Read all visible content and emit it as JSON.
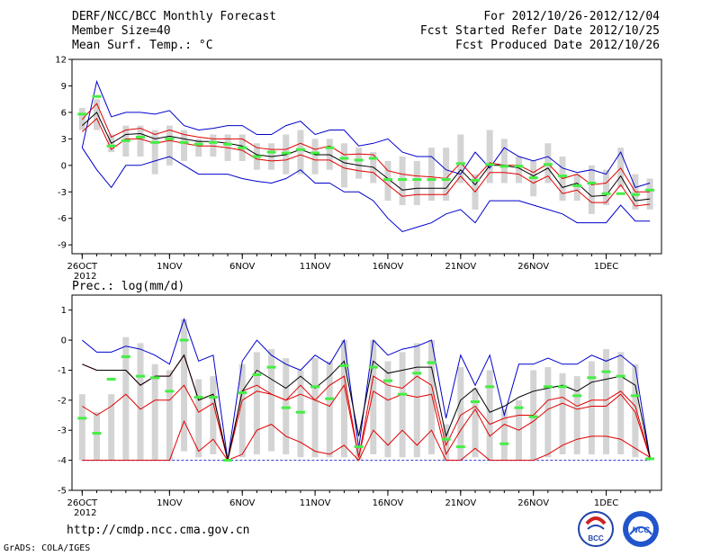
{
  "header": {
    "left": [
      "DERF/NCC/BCC Monthly Forecast",
      "Member Size=40",
      "Mean Surf. Temp.: °C"
    ],
    "right": [
      "For 2012/10/26-2012/12/04",
      "Fcst Started Refer Date 2012/10/25",
      "Fcst Produced Date 2012/10/26"
    ]
  },
  "precip_label": "Prec.: log(mm/d)",
  "footer": {
    "url": "http://cmdp.ncc.cma.gov.cn",
    "credit": "GrADS: COLA/IGES"
  },
  "logos": [
    {
      "name": "bcc-logo",
      "text": "BCC"
    },
    {
      "name": "ncc-logo",
      "text": "NCC"
    }
  ],
  "chart_data": [
    {
      "type": "line",
      "title": "Mean Surf. Temp.: °C",
      "x_labels": [
        {
          "day": 1,
          "label": "26OCT"
        },
        {
          "day": 7,
          "label": "1NOV"
        },
        {
          "day": 12,
          "label": "6NOV"
        },
        {
          "day": 17,
          "label": "11NOV"
        },
        {
          "day": 22,
          "label": "16NOV"
        },
        {
          "day": 27,
          "label": "21NOV"
        },
        {
          "day": 32,
          "label": "26NOV"
        },
        {
          "day": 37,
          "label": "1DEC"
        }
      ],
      "year_label": "2012",
      "ylim": [
        -10,
        12
      ],
      "yticks": [
        -9,
        -6,
        -3,
        0,
        3,
        6,
        9,
        12
      ],
      "series": [
        {
          "name": "max",
          "color": "#0000cc",
          "values": [
            2,
            9.5,
            5.5,
            6,
            6,
            5.8,
            6.2,
            4.5,
            4,
            4.2,
            4.5,
            4.5,
            3.5,
            3.5,
            4.5,
            5,
            3.5,
            4,
            4,
            2.2,
            2.5,
            3,
            1.5,
            1,
            1,
            -0.5,
            -1,
            1.5,
            -0.3,
            2,
            1,
            0.5,
            1,
            -0.3,
            -0.8,
            -0.5,
            -1,
            1.5,
            -2.5,
            -2
          ]
        },
        {
          "name": "mean-upper",
          "color": "#e00000",
          "values": [
            5.2,
            7,
            3.2,
            4,
            4.2,
            3.5,
            4,
            3.5,
            3.2,
            3,
            3,
            3,
            2,
            1.8,
            1.8,
            2.5,
            1.8,
            2.2,
            1.2,
            1.3,
            1.2,
            -0.6,
            -1,
            -1.2,
            -1.3,
            -1.5,
            0.3,
            -1.5,
            0.3,
            0,
            0,
            -0.8,
            0.2,
            -1.5,
            -1,
            -2.2,
            -2,
            -0.3,
            -3,
            -3
          ]
        },
        {
          "name": "ensemble-mean",
          "color": "#000000",
          "values": [
            4.5,
            6,
            2.5,
            3.5,
            3.6,
            3,
            3.3,
            3,
            2.7,
            2.7,
            2.5,
            2.2,
            1.2,
            1,
            1.2,
            1.8,
            1.2,
            1.2,
            0.3,
            0,
            -0.2,
            -1.5,
            -2.8,
            -2.6,
            -2.6,
            -2.6,
            -0.5,
            -2.2,
            0,
            0,
            -0.3,
            -1.2,
            -0.3,
            -2.5,
            -2,
            -3.5,
            -3.4,
            -1.2,
            -4,
            -3.8
          ]
        },
        {
          "name": "mean-lower",
          "color": "#e00000",
          "values": [
            3.8,
            5.3,
            1.8,
            3,
            3,
            2.5,
            2.8,
            2.5,
            2.2,
            2.2,
            2,
            1.7,
            0.7,
            0.5,
            0.6,
            1.2,
            0.6,
            0.6,
            -0.3,
            -0.6,
            -0.8,
            -2.2,
            -3.5,
            -3.3,
            -3.3,
            -3.3,
            -1.2,
            -3,
            -0.8,
            -0.8,
            -1,
            -2,
            -1.2,
            -3.2,
            -2.8,
            -4.2,
            -4.2,
            -2.2,
            -4.6,
            -4.4
          ]
        },
        {
          "name": "min",
          "color": "#0000cc",
          "values": [
            2,
            -0.5,
            -2.5,
            0,
            0,
            0.5,
            1,
            0,
            -1,
            -1,
            -1,
            -1.5,
            -1.8,
            -2,
            -1.5,
            -0.5,
            -2,
            -2,
            -3,
            -3,
            -4,
            -6,
            -7.5,
            -7,
            -6.5,
            -5.5,
            -5,
            -6.5,
            -4,
            -4,
            -4,
            -4.5,
            -5,
            -5.5,
            -6.5,
            -6.5,
            -6.5,
            -4.5,
            -6.3,
            -6.3
          ]
        },
        {
          "name": "box-top",
          "color": "#d4d4d4",
          "values": [
            6.5,
            7.5,
            3.5,
            4.5,
            4.5,
            4,
            4.5,
            4,
            3,
            3.5,
            3.5,
            3.5,
            2.5,
            2.5,
            3.5,
            4,
            3,
            3,
            2.5,
            2,
            1.5,
            0.5,
            1,
            0.5,
            2,
            2,
            3.5,
            -1,
            4,
            3,
            1,
            0.5,
            2.5,
            1,
            -1,
            0,
            -0.5,
            2,
            -1,
            -1.5
          ]
        },
        {
          "name": "box-bottom",
          "color": "#d4d4d4",
          "values": [
            4,
            4,
            1.5,
            1,
            1,
            -1,
            0,
            0.5,
            1,
            1,
            0.5,
            0.5,
            -0.5,
            -0.5,
            -1,
            -1,
            -1,
            -0.5,
            -2.5,
            -1.5,
            -2,
            -4,
            -4.5,
            -4.5,
            -4,
            -4,
            -2,
            -5,
            -2,
            -2,
            -2,
            -3.5,
            -2,
            -4,
            -4,
            -5.5,
            -4.5,
            -2.5,
            -5,
            -5
          ]
        },
        {
          "name": "observed",
          "color": "#44ee44",
          "values": [
            5.8,
            7.8,
            2.2,
            2.8,
            3.2,
            2.6,
            3,
            2.6,
            2.4,
            2.6,
            2.4,
            2,
            1,
            1.5,
            1.4,
            1.8,
            1.4,
            2,
            0.8,
            0.6,
            0.8,
            -1.6,
            -1.6,
            -1.6,
            -1.6,
            -1.6,
            0.2,
            -1.7,
            0.1,
            -0.1,
            -0.1,
            -1.4,
            0.1,
            -1.2,
            -2.3,
            -2,
            -3.2,
            -3.2,
            -3.3,
            -2.8
          ]
        }
      ]
    },
    {
      "type": "line",
      "title": "Prec.: log(mm/d)",
      "x_labels": [
        {
          "day": 1,
          "label": "26OCT"
        },
        {
          "day": 7,
          "label": "1NOV"
        },
        {
          "day": 12,
          "label": "6NOV"
        },
        {
          "day": 17,
          "label": "11NOV"
        },
        {
          "day": 22,
          "label": "16NOV"
        },
        {
          "day": 27,
          "label": "21NOV"
        },
        {
          "day": 32,
          "label": "26NOV"
        },
        {
          "day": 37,
          "label": "1DEC"
        }
      ],
      "year_label": "2012",
      "ylim": [
        -5,
        1.5
      ],
      "yticks": [
        -5,
        -4,
        -3,
        -2,
        -1,
        0,
        1
      ],
      "series": [
        {
          "name": "max",
          "color": "#0000cc",
          "values": [
            0,
            -0.4,
            -0.4,
            -0.2,
            -0.3,
            -0.5,
            -0.8,
            0.7,
            -0.7,
            -0.5,
            -4,
            -0.7,
            0,
            -0.5,
            -0.8,
            -1,
            -0.5,
            -0.8,
            0,
            -3.6,
            0,
            -0.5,
            -0.3,
            -0.2,
            0,
            -2.6,
            -0.5,
            -1.5,
            -0.5,
            -2.5,
            -0.8,
            -0.8,
            -0.6,
            -0.8,
            -0.8,
            -0.5,
            -0.7,
            -0.5,
            -0.9,
            -3.9
          ]
        },
        {
          "name": "mean-upper",
          "color": "#e00000",
          "values": [
            -0.8,
            -1,
            -1,
            -1,
            -1.5,
            -1.2,
            -1.2,
            -0.5,
            -2,
            -1.8,
            -4,
            -1.7,
            -1.5,
            -1.8,
            -2,
            -1.5,
            -2,
            -1.5,
            -1.2,
            -3.9,
            -1.2,
            -1.5,
            -1.6,
            -1.2,
            -1.5,
            -3.5,
            -2.5,
            -2.2,
            -2.8,
            -2.6,
            -2.5,
            -2.5,
            -2,
            -1.9,
            -2.2,
            -2,
            -2,
            -1.7,
            -2.2,
            -3.9
          ]
        },
        {
          "name": "ensemble-mean",
          "color": "#000000",
          "values": [
            -0.8,
            -1,
            -1,
            -1,
            -1.5,
            -1.2,
            -1.2,
            -0.5,
            -2,
            -1.8,
            -4,
            -1.7,
            -1,
            -1.3,
            -1.6,
            -1.2,
            -1.6,
            -1.2,
            -0.7,
            -3.2,
            -0.7,
            -1.1,
            -1,
            -0.9,
            -0.9,
            -3.2,
            -2,
            -1.6,
            -2.4,
            -2.2,
            -1.9,
            -1.7,
            -1.6,
            -1.5,
            -1.7,
            -1.4,
            -1.3,
            -1.2,
            -1.5,
            -3.9
          ]
        },
        {
          "name": "mean-lower",
          "color": "#e00000",
          "values": [
            -2.2,
            -2.5,
            -2.2,
            -1.8,
            -2.3,
            -2,
            -2,
            -1.5,
            -2.4,
            -2.1,
            -4,
            -2,
            -1.7,
            -1.8,
            -2,
            -1.8,
            -2,
            -2.2,
            -1.5,
            -3.9,
            -1.7,
            -2,
            -1.8,
            -1.9,
            -1.8,
            -3.8,
            -3,
            -2.3,
            -3.2,
            -2.8,
            -3,
            -2.7,
            -2.3,
            -2.1,
            -2.3,
            -2.2,
            -2.2,
            -1.8,
            -2.4,
            -3.9
          ]
        },
        {
          "name": "min",
          "color": "#e00000",
          "values": [
            -4,
            -4,
            -4,
            -4,
            -4,
            -4,
            -4,
            -2.7,
            -3.7,
            -3.3,
            -4,
            -3.8,
            -3,
            -2.8,
            -3.2,
            -3.4,
            -3.7,
            -3.8,
            -3.5,
            -4,
            -3,
            -3.5,
            -3,
            -3.5,
            -3,
            -4,
            -4,
            -3.6,
            -4,
            -4,
            -4,
            -4,
            -3.8,
            -3.5,
            -3.3,
            -3.2,
            -3.2,
            -3.3,
            -3.6,
            -3.9
          ]
        },
        {
          "name": "box-top",
          "color": "#d4d4d4",
          "values": [
            -1.8,
            -2.4,
            -1.8,
            0.1,
            -0.1,
            -0.8,
            -1,
            0.7,
            -1.3,
            -1.2,
            -4,
            -0.8,
            -0.4,
            -0.3,
            -0.6,
            -1,
            -0.6,
            -0.7,
            0,
            -3.6,
            0,
            -0.7,
            -0.4,
            -0.1,
            0,
            -2.8,
            -0.9,
            -1.6,
            -1,
            -2.3,
            -2,
            -1,
            -0.9,
            -1.1,
            -1.2,
            -0.7,
            -0.3,
            -0.4,
            -0.8,
            -3.9
          ]
        },
        {
          "name": "box-bottom",
          "color": "#d4d4d4",
          "values": [
            -4,
            -4,
            -4,
            -4,
            -4,
            -4,
            -4,
            -3.7,
            -3.9,
            -3.8,
            -4,
            -3.9,
            -3.8,
            -3.7,
            -3.8,
            -3.9,
            -3.9,
            -3.9,
            -3.9,
            -4,
            -3.8,
            -3.9,
            -3.9,
            -3.9,
            -3.8,
            -4,
            -4,
            -3.9,
            -4,
            -4,
            -4,
            -4,
            -3.9,
            -3.8,
            -3.8,
            -3.8,
            -3.8,
            -3.8,
            -3.9,
            -3.9
          ]
        },
        {
          "name": "observed",
          "color": "#44ee44",
          "values": [
            -2.6,
            -3.1,
            -1.3,
            -0.55,
            -1.2,
            -1.25,
            -1.7,
            0,
            -1.9,
            -1.9,
            -4,
            -1.75,
            -1.15,
            -0.9,
            -2.25,
            -2.4,
            -1.55,
            -1.95,
            -0.85,
            -3.55,
            -0.9,
            -1.35,
            -1.8,
            -1.1,
            -0.75,
            -3.3,
            -3.55,
            -2.05,
            -1.55,
            -3.45,
            -2.25,
            -2.55,
            -1.55,
            -1.55,
            -1.85,
            -1.25,
            -1.05,
            -1.2,
            -1.85,
            -3.95
          ]
        },
        {
          "name": "zero-line",
          "color": "#3333cc",
          "values": [
            -4,
            -4
          ]
        }
      ]
    }
  ]
}
